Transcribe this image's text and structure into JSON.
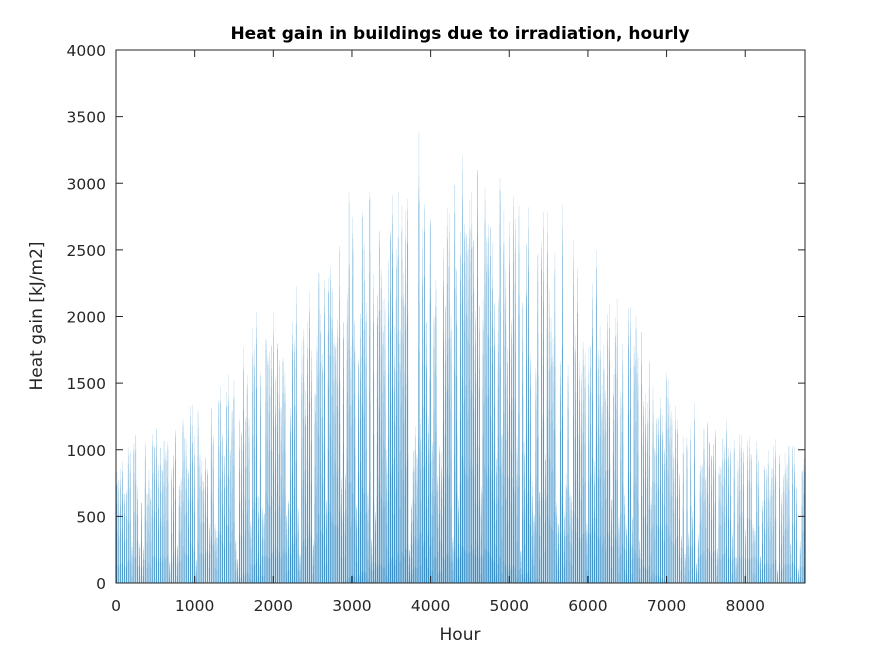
{
  "chart_data": {
    "type": "bar",
    "title": "Heat gain in buildings due to irradiation, hourly",
    "xlabel": "Hour",
    "ylabel": "Heat gain [kJ/m2]",
    "xlim": [
      0,
      8760
    ],
    "ylim": [
      0,
      4000
    ],
    "xticks": [
      0,
      1000,
      2000,
      3000,
      4000,
      5000,
      6000,
      7000,
      8000
    ],
    "yticks": [
      0,
      500,
      1000,
      1500,
      2000,
      2500,
      3000,
      3500,
      4000
    ],
    "grid": false,
    "color": "#0072BD",
    "daily_peak_envelope": {
      "x": [
        0,
        500,
        1000,
        1500,
        2000,
        2500,
        3000,
        3500,
        3850,
        4200,
        4650,
        5000,
        5500,
        6000,
        6500,
        7000,
        7500,
        8000,
        8500,
        8760
      ],
      "y": [
        1250,
        1270,
        1500,
        1820,
        2350,
        2700,
        3050,
        3300,
        3540,
        3350,
        3460,
        3200,
        2950,
        2800,
        2450,
        1800,
        1450,
        1270,
        1150,
        1100
      ]
    }
  }
}
